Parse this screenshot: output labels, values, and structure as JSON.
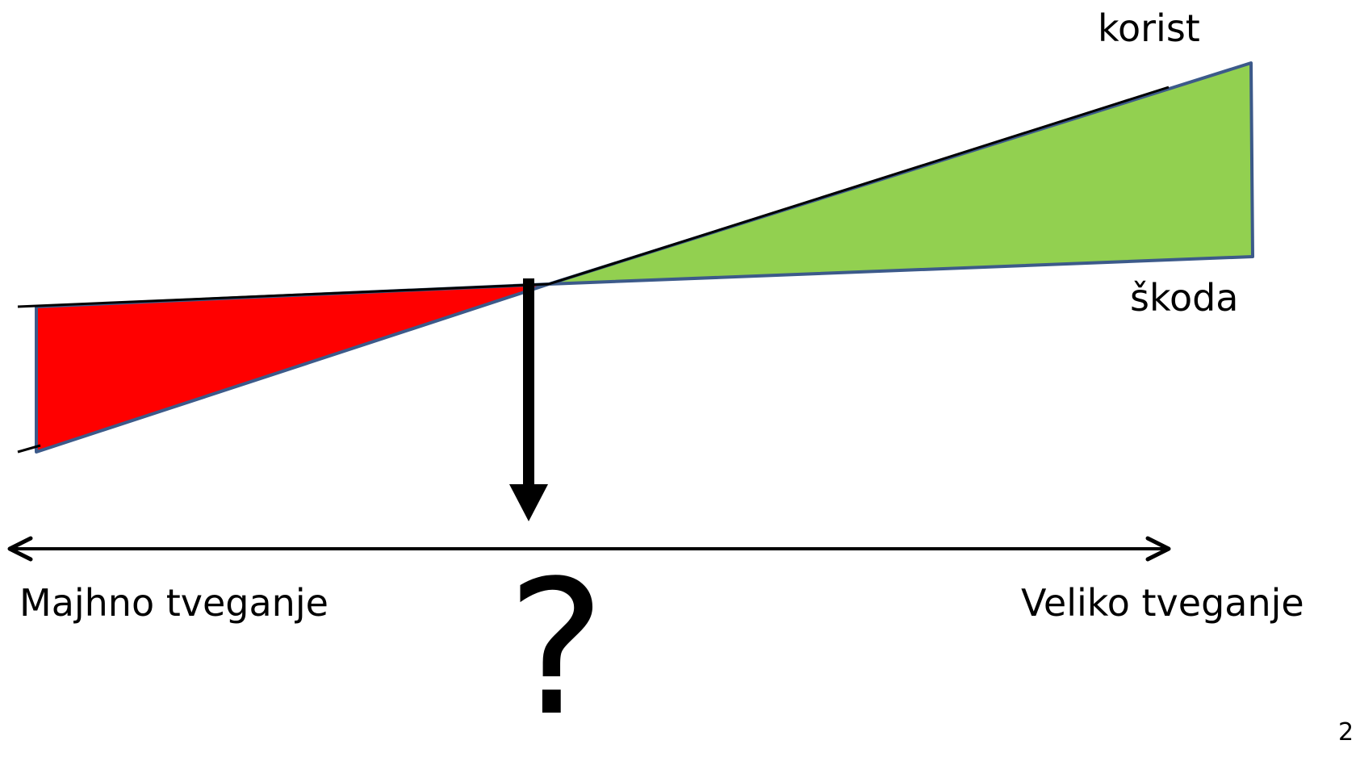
{
  "labels": {
    "benefit": "korist",
    "harm": "škoda",
    "low_risk": "Majhno tveganje",
    "high_risk": "Veliko tveganje",
    "question": "?",
    "page_number": "2"
  },
  "colors": {
    "harm_fill": "#ff0000",
    "benefit_fill": "#92d050",
    "shape_outline": "#3c5a8a",
    "line": "#000000"
  }
}
